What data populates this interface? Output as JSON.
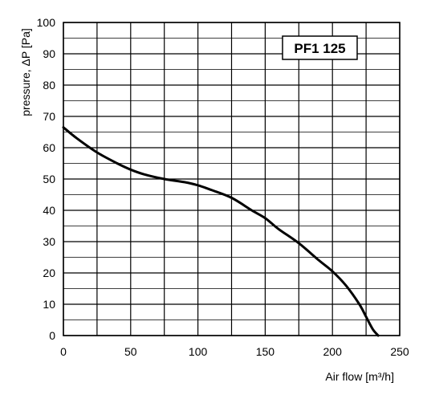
{
  "chart_data": {
    "type": "line",
    "title": "PF1 125",
    "xlabel": "Air flow [m³/h]",
    "ylabel": "pressure, ΔP [Pa]",
    "xlim": [
      0,
      250
    ],
    "ylim": [
      0,
      100
    ],
    "x_ticks": [
      "0",
      "50",
      "100",
      "150",
      "200",
      "250"
    ],
    "y_ticks": [
      "0",
      "10",
      "20",
      "30",
      "40",
      "50",
      "60",
      "70",
      "80",
      "90",
      "100"
    ],
    "grid": true,
    "series": [
      {
        "x": [
          0,
          10,
          25,
          40,
          50,
          60,
          75,
          90,
          100,
          110,
          125,
          140,
          150,
          160,
          175,
          190,
          200,
          210,
          220,
          225,
          230,
          234
        ],
        "y": [
          66.5,
          63,
          58.5,
          55,
          53,
          51.5,
          50,
          49,
          48,
          46.5,
          44,
          40,
          37.5,
          34,
          29.5,
          24,
          20.5,
          16,
          10,
          6,
          2,
          0
        ]
      }
    ]
  }
}
